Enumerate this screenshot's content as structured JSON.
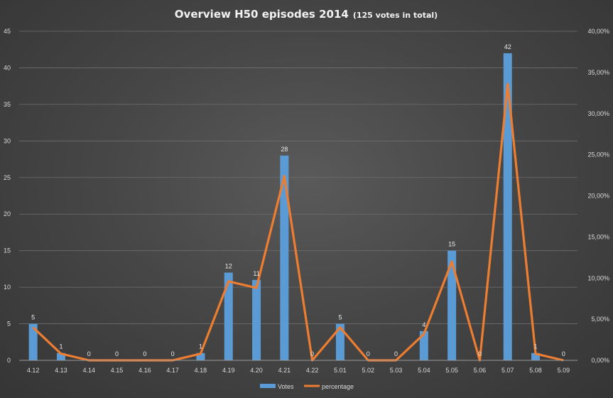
{
  "chart_data": {
    "type": "bar",
    "title": "Overview H50 episodes 2014",
    "subtitle": "(125 votes in total)",
    "categories": [
      "4.12",
      "4.13",
      "4.14",
      "4.15",
      "4.16",
      "4.17",
      "4.18",
      "4.19",
      "4.20",
      "4.21",
      "4.22",
      "5.01",
      "5.02",
      "5.03",
      "5.04",
      "5.05",
      "5.06",
      "5.07",
      "5.08",
      "5.09"
    ],
    "series": [
      {
        "name": "Votes",
        "type": "bar",
        "axis": "left",
        "color": "#5b9bd5",
        "values": [
          5,
          1,
          0,
          0,
          0,
          0,
          1,
          12,
          11,
          28,
          0,
          5,
          0,
          0,
          4,
          15,
          0,
          42,
          1,
          0
        ],
        "labels": [
          "5",
          "1",
          "0",
          "0",
          "0",
          "0",
          "1",
          "12",
          "11",
          "28",
          "0",
          "5",
          "0",
          "0",
          "4",
          "15",
          "0",
          "42",
          "1",
          "0"
        ]
      },
      {
        "name": "percentage",
        "type": "line",
        "axis": "right",
        "color": "#ed7d31",
        "values": [
          4.0,
          0.8,
          0.0,
          0.0,
          0.0,
          0.0,
          0.8,
          9.6,
          8.8,
          22.4,
          0.0,
          4.0,
          0.0,
          0.0,
          3.2,
          12.0,
          0.0,
          33.6,
          0.8,
          0.0
        ]
      }
    ],
    "y_left": {
      "min": 0,
      "max": 45,
      "ticks": [
        "0",
        "5",
        "10",
        "15",
        "20",
        "25",
        "30",
        "35",
        "40",
        "45"
      ]
    },
    "y_right": {
      "min": 0,
      "max": 40,
      "ticks": [
        "0,00%",
        "5,00%",
        "10,00%",
        "15,00%",
        "20,00%",
        "25,00%",
        "30,00%",
        "35,00%",
        "40,00%"
      ]
    },
    "grid": true,
    "legend": "bottom"
  }
}
